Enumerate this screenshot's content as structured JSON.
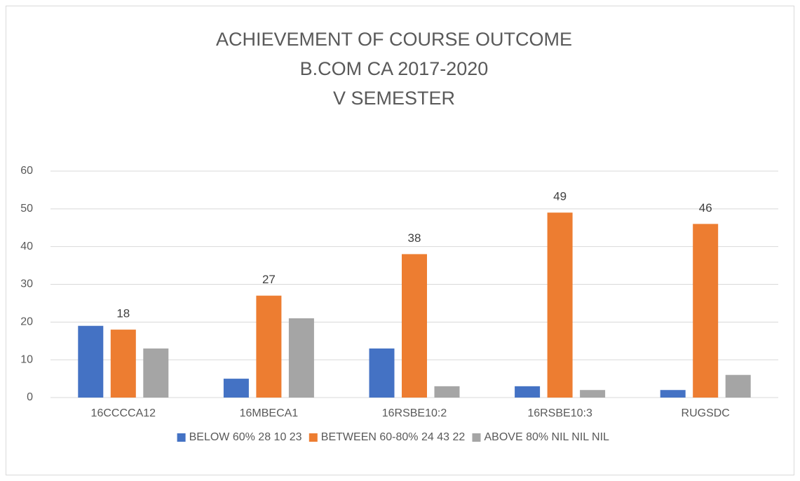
{
  "chart_data": {
    "type": "bar",
    "title": [
      "ACHIEVEMENT OF COURSE OUTCOME",
      "B.COM CA 2017-2020",
      "V SEMESTER"
    ],
    "categories": [
      "16CCCCA12",
      "16MBECA1",
      "16RSBE10:2",
      "16RSBE10:3",
      "RUGSDC"
    ],
    "series": [
      {
        "name": "BELOW 60% 28 10 23",
        "color": "#4472c4",
        "values": [
          19,
          5,
          13,
          3,
          2
        ]
      },
      {
        "name": "BETWEEN 60-80% 24 43 22",
        "color": "#ed7d31",
        "values": [
          18,
          27,
          38,
          49,
          46
        ],
        "data_labels": true
      },
      {
        "name": "ABOVE 80% NIL NIL NIL",
        "color": "#a5a5a5",
        "values": [
          13,
          21,
          3,
          2,
          6
        ]
      }
    ],
    "ylim": [
      0,
      60
    ],
    "yticks": [
      0,
      10,
      20,
      30,
      40,
      50,
      60
    ],
    "grid": true,
    "legend": "bottom"
  }
}
